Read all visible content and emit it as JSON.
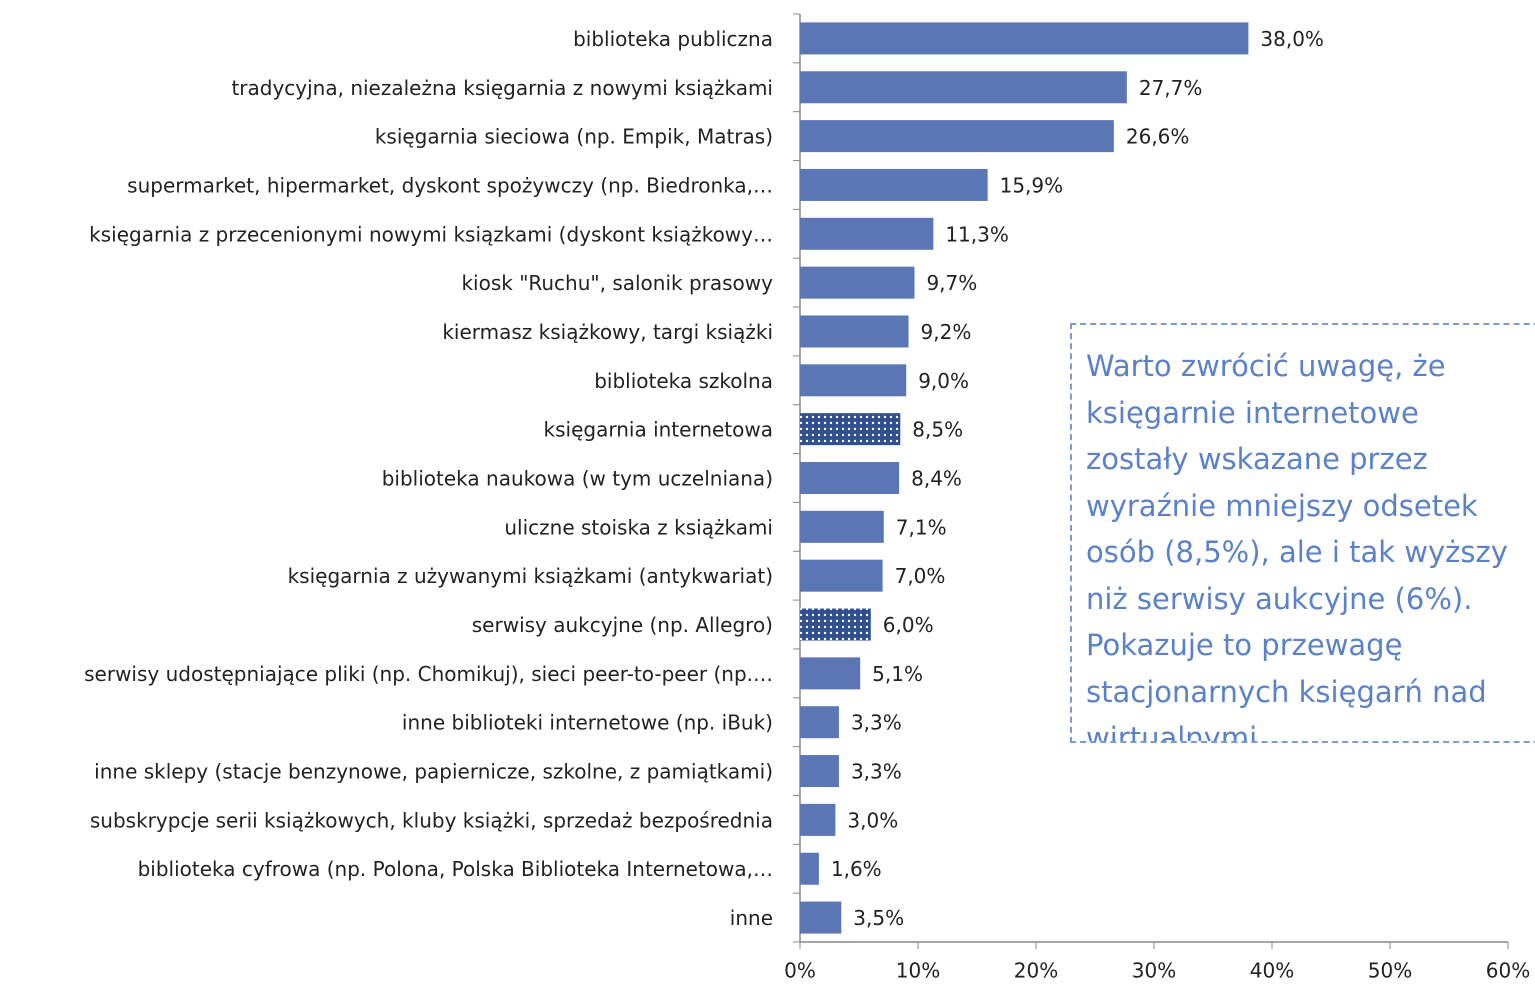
{
  "chart_data": {
    "type": "hbar",
    "categories": [
      "biblioteka publiczna",
      "tradycyjna, niezależna księgarnia z nowymi książkami",
      "księgarnia sieciowa (np. Empik, Matras)",
      "supermarket, hipermarket, dyskont spożywczy (np. Biedronka,…",
      "księgarnia z przecenionymi nowymi ksiązkami (dyskont książkowy…",
      "kiosk \"Ruchu\", salonik prasowy",
      "kiermasz książkowy, targi książki",
      "biblioteka szkolna",
      "księgarnia internetowa",
      "biblioteka naukowa (w tym uczelniana)",
      "uliczne stoiska z książkami",
      "księgarnia z używanymi książkami (antykwariat)",
      "serwisy aukcyjne (np. Allegro)",
      "serwisy udostępniające pliki (np. Chomikuj), sieci peer-to-peer (np.…",
      "inne biblioteki internetowe (np. iBuk)",
      "inne sklepy (stacje benzynowe, papiernicze, szkolne, z pamiątkami)",
      "subskrypcje serii książkowych, kluby książki, sprzedaż bezpośrednia",
      "biblioteka cyfrowa (np. Polona, Polska Biblioteka Internetowa,…",
      "inne"
    ],
    "values": [
      38.0,
      27.7,
      26.6,
      15.9,
      11.3,
      9.7,
      9.2,
      9.0,
      8.5,
      8.4,
      7.1,
      7.0,
      6.0,
      5.1,
      3.3,
      3.3,
      3.0,
      1.6,
      3.5
    ],
    "value_labels": [
      "38,0%",
      "27,7%",
      "26,6%",
      "15,9%",
      "11,3%",
      "9,7%",
      "9,2%",
      "9,0%",
      "8,5%",
      "8,4%",
      "7,1%",
      "7,0%",
      "6,0%",
      "5,1%",
      "3,3%",
      "3,3%",
      "3,0%",
      "1,6%",
      "3,5%"
    ],
    "fills": [
      "solid",
      "solid",
      "solid",
      "solid",
      "solid",
      "solid",
      "solid",
      "solid",
      "dotted",
      "solid",
      "solid",
      "solid",
      "dotted",
      "solid",
      "solid",
      "solid",
      "solid",
      "solid",
      "solid"
    ],
    "color": "#5b75b5",
    "xlim": [
      0,
      60
    ],
    "xticks": [
      {
        "value": 0,
        "label": "0%"
      },
      {
        "value": 10,
        "label": "10%"
      },
      {
        "value": 20,
        "label": "20%"
      },
      {
        "value": 30,
        "label": "30%"
      },
      {
        "value": 40,
        "label": "40%"
      },
      {
        "value": 50,
        "label": "50%"
      },
      {
        "value": 60,
        "label": "60%"
      }
    ],
    "annotation": [
      "Warto zwrócić uwagę, że",
      "księgarnie internetowe",
      "zostały wskazane przez",
      "wyraźnie mniejszy odsetek",
      "osób (8,5%), ale i tak wyższy",
      "niż serwisy aukcyjne (6%).",
      "Pokazuje to przewagę",
      "stacjonarnych księgarń nad",
      "wirtualnymi."
    ]
  }
}
